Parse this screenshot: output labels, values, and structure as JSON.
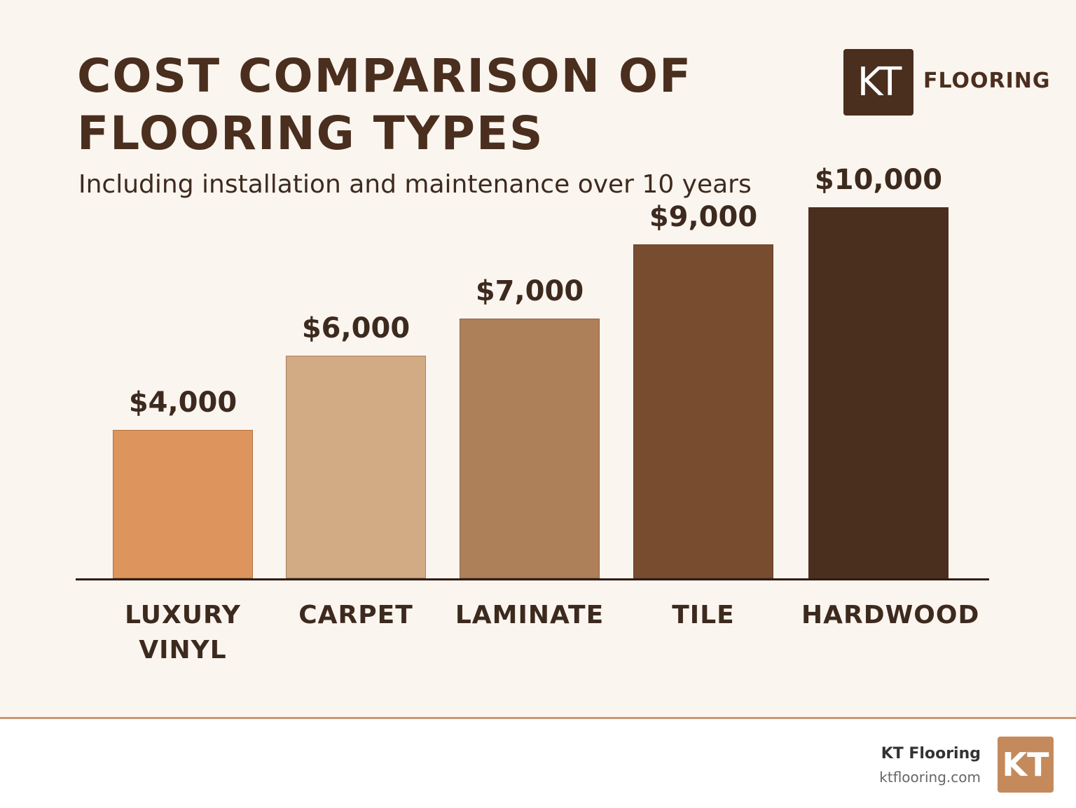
{
  "chart_data": {
    "type": "bar",
    "title": "COST COMPARISON OF FLOORING TYPES",
    "subtitle": "Including installation and maintenance over 10 years",
    "categories": [
      "LUXURY VINYL",
      "CARPET",
      "LAMINATE",
      "TILE",
      "HARDWOOD"
    ],
    "values": [
      4000,
      6000,
      7000,
      9000,
      10000
    ],
    "value_labels": [
      "$4,000",
      "$6,000",
      "$7,000",
      "$9,000",
      "$10,000"
    ],
    "colors": [
      "#dd955d",
      "#d2aa84",
      "#ad8059",
      "#784c2f",
      "#4a2e1e"
    ]
  },
  "brand": {
    "logo_mark": "KT",
    "logo_text": "FLOORING"
  },
  "footer": {
    "name": "KT Flooring",
    "url": "ktflooring.com",
    "logo_mark": "KT"
  }
}
